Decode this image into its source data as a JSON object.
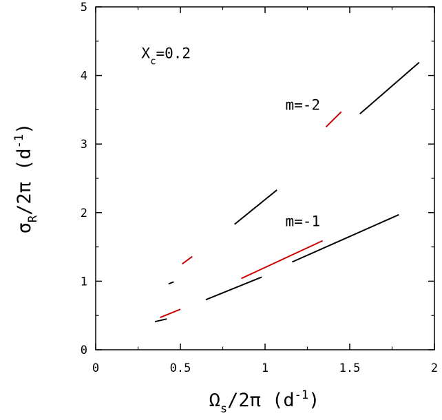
{
  "chart_data": {
    "type": "line",
    "xlabel": {
      "symbol": "Ω",
      "subscript": "s",
      "rest": "/2π (d",
      "sup": "-1",
      "close": ")"
    },
    "ylabel": {
      "symbol": "σ",
      "subscript": "R",
      "rest": "/2π (d",
      "sup": "-1",
      "close": ")"
    },
    "xlim": [
      0,
      2
    ],
    "ylim": [
      0,
      5
    ],
    "xticks": [
      0,
      0.5,
      1,
      1.5,
      2
    ],
    "xtick_labels": [
      "0",
      "0.5",
      "1",
      "1.5",
      "2"
    ],
    "yticks": [
      0,
      1,
      2,
      3,
      4,
      5
    ],
    "ytick_labels": [
      "0",
      "1",
      "2",
      "3",
      "4",
      "5"
    ],
    "grid": false,
    "annotations": [
      {
        "id": "xc",
        "main": "X",
        "sub": "c",
        "rest": "=0.2",
        "x": 0.27,
        "y": 4.25
      },
      {
        "id": "m2",
        "text": "m=-2",
        "x": 1.12,
        "y": 3.5
      },
      {
        "id": "m1",
        "text": "m=-1",
        "x": 1.12,
        "y": 1.8
      }
    ],
    "segments": [
      {
        "color": "#000000",
        "x": [
          0.35,
          0.42
        ],
        "y": [
          0.41,
          0.45
        ]
      },
      {
        "color": "#cc0000",
        "x": [
          0.38,
          0.5
        ],
        "y": [
          0.47,
          0.59
        ]
      },
      {
        "color": "#000000",
        "x": [
          0.43,
          0.46
        ],
        "y": [
          0.96,
          0.99
        ]
      },
      {
        "color": "#cc0000",
        "x": [
          0.51,
          0.57
        ],
        "y": [
          1.25,
          1.36
        ]
      },
      {
        "color": "#000000",
        "x": [
          0.65,
          0.98
        ],
        "y": [
          0.73,
          1.06
        ]
      },
      {
        "color": "#000000",
        "x": [
          0.82,
          1.07
        ],
        "y": [
          1.83,
          2.33
        ]
      },
      {
        "color": "#cc0000",
        "x": [
          0.86,
          1.34
        ],
        "y": [
          1.04,
          1.59
        ]
      },
      {
        "color": "#000000",
        "x": [
          1.16,
          1.79
        ],
        "y": [
          1.28,
          1.97
        ]
      },
      {
        "color": "#cc0000",
        "x": [
          1.36,
          1.45
        ],
        "y": [
          3.25,
          3.47
        ]
      },
      {
        "color": "#000000",
        "x": [
          1.56,
          1.91
        ],
        "y": [
          3.44,
          4.19
        ]
      }
    ]
  }
}
